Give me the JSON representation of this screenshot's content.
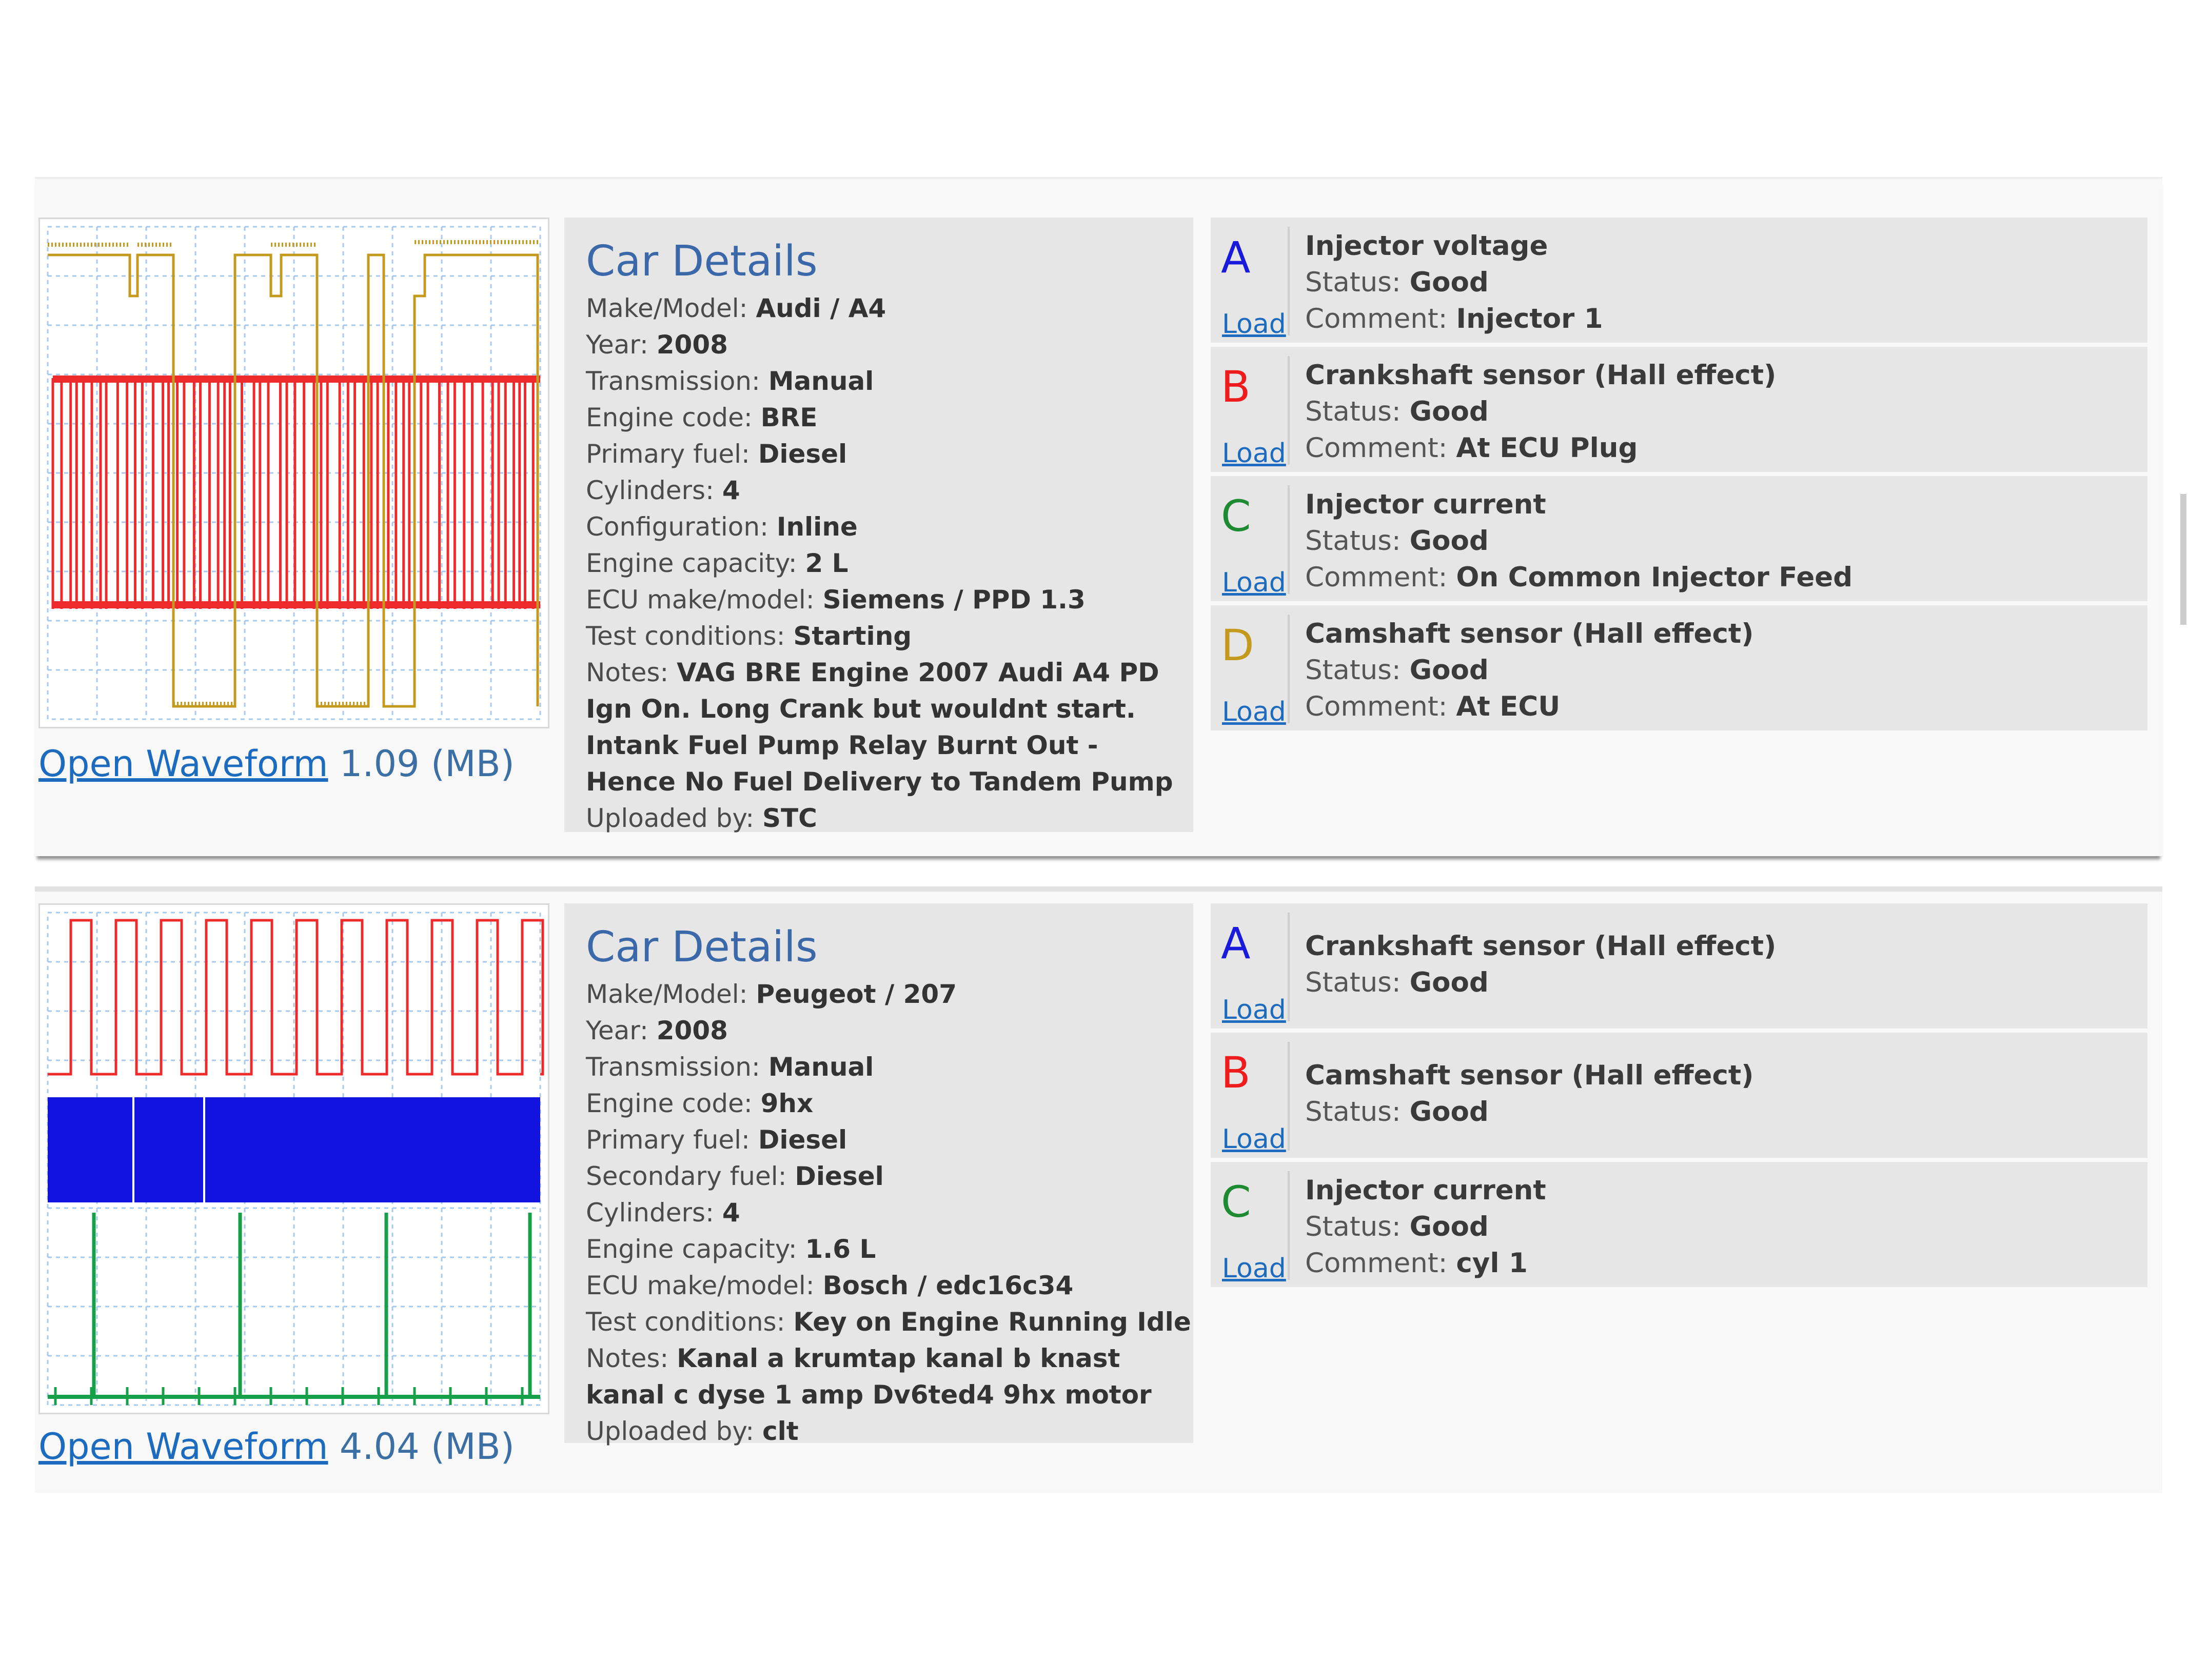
{
  "colors": {
    "link": "#1c6bbf",
    "title": "#3b68a8",
    "A": "#1a1adb",
    "B": "#ee1c1c",
    "C": "#1e8a32",
    "D": "#c49a1e"
  },
  "records": [
    {
      "waveform": {
        "link": "Open Waveform",
        "size": "1.09 (MB)"
      },
      "car": {
        "title": "Car Details",
        "rows": [
          {
            "label": "Make/Model:",
            "value": "Audi / A4"
          },
          {
            "label": "Year:",
            "value": "2008"
          },
          {
            "label": "Transmission:",
            "value": "Manual"
          },
          {
            "label": "Engine code:",
            "value": "BRE"
          },
          {
            "label": "Primary fuel:",
            "value": "Diesel"
          },
          {
            "label": "Cylinders:",
            "value": "4"
          },
          {
            "label": "Configuration:",
            "value": "Inline"
          },
          {
            "label": "Engine capacity:",
            "value": "2 L"
          },
          {
            "label": "ECU make/model:",
            "value": "Siemens / PPD 1.3"
          },
          {
            "label": "Test conditions:",
            "value": "Starting"
          },
          {
            "label": "Notes:",
            "value": "VAG BRE Engine 2007 Audi A4 PD Ign On. Long Crank but wouldnt start. Intank Fuel Pump Relay Burnt Out - Hence No Fuel Delivery to Tandem Pump"
          },
          {
            "label": "Uploaded by:",
            "value": "STC"
          }
        ]
      },
      "channels": [
        {
          "letter": "A",
          "title": "Injector voltage",
          "status_label": "Status:",
          "status": "Good",
          "comment_label": "Comment:",
          "comment": "Injector 1",
          "load": "Load"
        },
        {
          "letter": "B",
          "title": "Crankshaft sensor (Hall effect)",
          "status_label": "Status:",
          "status": "Good",
          "comment_label": "Comment:",
          "comment": "At ECU Plug",
          "load": "Load"
        },
        {
          "letter": "C",
          "title": "Injector current",
          "status_label": "Status:",
          "status": "Good",
          "comment_label": "Comment:",
          "comment": "On Common Injector Feed",
          "load": "Load"
        },
        {
          "letter": "D",
          "title": "Camshaft sensor (Hall effect)",
          "status_label": "Status:",
          "status": "Good",
          "comment_label": "Comment:",
          "comment": "At ECU",
          "load": "Load"
        }
      ]
    },
    {
      "waveform": {
        "link": "Open Waveform",
        "size": "4.04 (MB)"
      },
      "car": {
        "title": "Car Details",
        "rows": [
          {
            "label": "Make/Model:",
            "value": "Peugeot / 207"
          },
          {
            "label": "Year:",
            "value": "2008"
          },
          {
            "label": "Transmission:",
            "value": "Manual"
          },
          {
            "label": "Engine code:",
            "value": "9hx"
          },
          {
            "label": "Primary fuel:",
            "value": "Diesel"
          },
          {
            "label": "Secondary fuel:",
            "value": "Diesel"
          },
          {
            "label": "Cylinders:",
            "value": "4"
          },
          {
            "label": "Engine capacity:",
            "value": "1.6 L"
          },
          {
            "label": "ECU make/model:",
            "value": "Bosch / edc16c34"
          },
          {
            "label": "Test conditions:",
            "value": "Key on Engine Running Idle"
          },
          {
            "label": "Notes:",
            "value": "Kanal a krumtap kanal b knast kanal c dyse 1 amp Dv6ted4 9hx motor"
          },
          {
            "label": "Uploaded by:",
            "value": "clt"
          }
        ]
      },
      "channels": [
        {
          "letter": "A",
          "title": "Crankshaft sensor (Hall effect)",
          "status_label": "Status:",
          "status": "Good",
          "load": "Load"
        },
        {
          "letter": "B",
          "title": "Camshaft sensor (Hall effect)",
          "status_label": "Status:",
          "status": "Good",
          "load": "Load"
        },
        {
          "letter": "C",
          "title": "Injector current",
          "status_label": "Status:",
          "status": "Good",
          "comment_label": "Comment:",
          "comment": "cyl 1",
          "load": "Load"
        }
      ]
    }
  ]
}
